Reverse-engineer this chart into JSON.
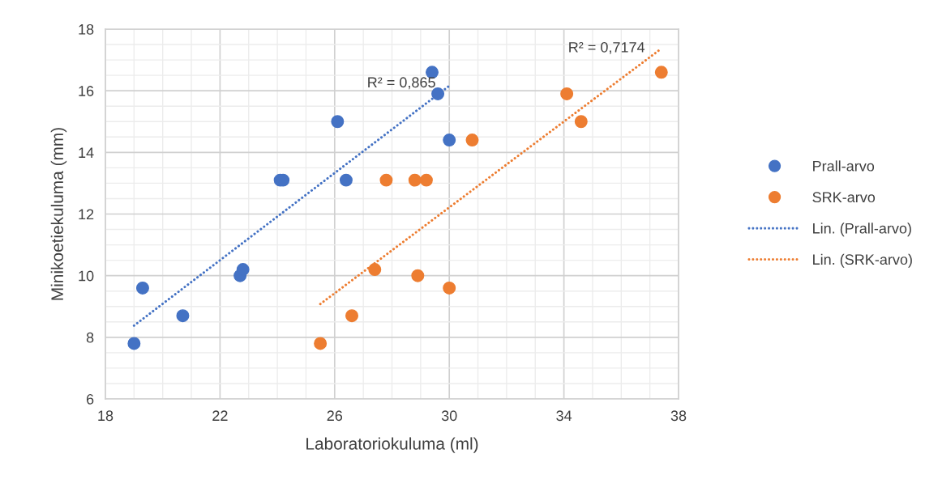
{
  "chart_data": {
    "type": "scatter",
    "xlabel": "Laboratoriokuluma (ml)",
    "ylabel": "Minikoetiekuluma (mm)",
    "xlim": [
      18,
      38
    ],
    "xticks": [
      18,
      22,
      26,
      30,
      34,
      38
    ],
    "ylim": [
      6,
      18
    ],
    "yticks": [
      6,
      8,
      10,
      12,
      14,
      16,
      18
    ],
    "grid": true,
    "legend": "right",
    "marker": "circle",
    "series": [
      {
        "name": "Prall-arvo",
        "color": "#4472c4",
        "x": [
          19.0,
          19.3,
          20.7,
          22.7,
          22.8,
          24.1,
          24.2,
          26.1,
          26.4,
          29.4,
          29.6,
          30.0
        ],
        "values": [
          7.8,
          9.6,
          8.7,
          10.0,
          10.2,
          13.1,
          13.1,
          15.0,
          13.1,
          16.6,
          15.9,
          14.4
        ]
      },
      {
        "name": "SRK-arvo",
        "color": "#ed7d31",
        "x": [
          25.5,
          26.6,
          27.4,
          27.8,
          28.8,
          28.9,
          29.2,
          30.0,
          30.8,
          34.1,
          34.6,
          37.4
        ],
        "values": [
          7.8,
          8.7,
          10.2,
          13.1,
          13.1,
          10.0,
          13.1,
          9.6,
          14.4,
          15.9,
          15.0,
          16.6
        ]
      },
      {
        "name": "Lin. (Prall-arvo)",
        "type": "line",
        "line_style": "dotted",
        "marker": "none",
        "color": "#4472c4",
        "x": [
          19.0,
          30.0
        ],
        "values": [
          8.38,
          16.16
        ]
      },
      {
        "name": "Lin. (SRK-arvo)",
        "type": "line",
        "line_style": "dotted",
        "marker": "none",
        "color": "#ed7d31",
        "x": [
          25.5,
          37.3
        ],
        "values": [
          9.08,
          17.3
        ]
      }
    ],
    "annotations": [
      "R² = 0,865",
      "R² = 0,7174"
    ]
  }
}
